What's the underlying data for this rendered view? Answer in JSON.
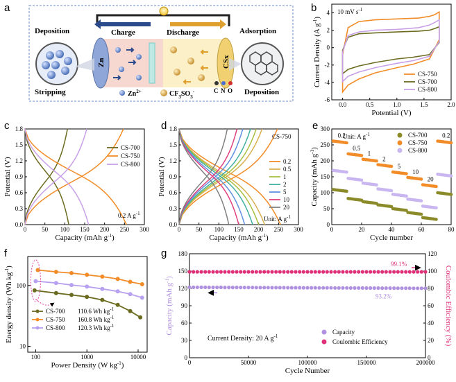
{
  "figure": {
    "letters": [
      "a",
      "b",
      "c",
      "d",
      "e",
      "f",
      "g"
    ],
    "schematic": {
      "charge_label": "Charge",
      "discharge_label": "Discharge",
      "deposition_left": "Deposition",
      "stripping_left": "Stripping",
      "adsorption_right": "Adsorption",
      "deposition_right": "Deposition",
      "zn_electrode": "Zn",
      "cs_electrode": "CSx",
      "zn_ion_legend": "Zn",
      "zn_ion_charge": "2+",
      "triflate_legend": "CF",
      "triflate_sub": "3",
      "triflate_mid": "SO",
      "triflate_sub2": "3",
      "triflate_charge": "-",
      "atoms": [
        "C",
        "N",
        "O"
      ],
      "colors": {
        "zn_ion": "#5a7fc4",
        "triflate": "#d9a84a",
        "charge_arrow": "#2b4a8c",
        "discharge_arrow": "#e0a030"
      }
    }
  },
  "chart_data": [
    {
      "id": "b",
      "type": "line",
      "title": "10 mV s-1",
      "xlabel": "Potential (V)",
      "ylabel": "Current Density (A g-1)",
      "xlim": [
        -0.2,
        2.0
      ],
      "ylim": [
        -6,
        5
      ],
      "xticks": [
        "0.0",
        "0.5",
        "1.0",
        "1.5",
        "2.0"
      ],
      "yticks": [
        "-6",
        "-4",
        "-2",
        "0",
        "2",
        "4"
      ],
      "legend_position": "bottom-right",
      "series": [
        {
          "name": "CS-750",
          "color": "#f28c28",
          "upper": [
            [
              0.0,
              -0.8
            ],
            [
              0.1,
              2.3
            ],
            [
              0.3,
              3.0
            ],
            [
              0.6,
              3.2
            ],
            [
              1.0,
              3.3
            ],
            [
              1.4,
              3.4
            ],
            [
              1.6,
              3.6
            ],
            [
              1.7,
              3.8
            ],
            [
              1.78,
              4.1
            ]
          ],
          "lower": [
            [
              1.78,
              0.9
            ],
            [
              1.6,
              -1.3
            ],
            [
              1.3,
              -1.9
            ],
            [
              1.0,
              -2.3
            ],
            [
              0.6,
              -2.9
            ],
            [
              0.3,
              -3.6
            ],
            [
              0.1,
              -4.3
            ],
            [
              0.0,
              -5.1
            ]
          ]
        },
        {
          "name": "CS-700",
          "color": "#6b6b20",
          "upper": [
            [
              0.0,
              -0.3
            ],
            [
              0.1,
              1.2
            ],
            [
              0.3,
              1.6
            ],
            [
              0.6,
              1.7
            ],
            [
              1.0,
              1.8
            ],
            [
              1.4,
              1.9
            ],
            [
              1.6,
              2.0
            ],
            [
              1.7,
              2.2
            ],
            [
              1.78,
              2.4
            ]
          ],
          "lower": [
            [
              1.78,
              0.6
            ],
            [
              1.6,
              -0.8
            ],
            [
              1.3,
              -1.1
            ],
            [
              1.0,
              -1.3
            ],
            [
              0.6,
              -1.7
            ],
            [
              0.3,
              -2.1
            ],
            [
              0.1,
              -2.5
            ],
            [
              0.0,
              -3.0
            ]
          ]
        },
        {
          "name": "CS-800",
          "color": "#c9a0e8",
          "upper": [
            [
              0.0,
              -0.5
            ],
            [
              0.1,
              1.4
            ],
            [
              0.3,
              1.8
            ],
            [
              0.6,
              2.0
            ],
            [
              1.0,
              2.1
            ],
            [
              1.4,
              2.3
            ],
            [
              1.6,
              2.6
            ],
            [
              1.7,
              2.9
            ],
            [
              1.78,
              3.2
            ]
          ],
          "lower": [
            [
              1.78,
              0.7
            ],
            [
              1.6,
              -1.0
            ],
            [
              1.3,
              -1.5
            ],
            [
              1.0,
              -1.8
            ],
            [
              0.6,
              -2.3
            ],
            [
              0.3,
              -2.8
            ],
            [
              0.1,
              -3.3
            ],
            [
              0.0,
              -3.9
            ]
          ]
        }
      ]
    },
    {
      "id": "c",
      "type": "line",
      "xlabel": "Capacity (mAh g-1)",
      "ylabel": "Potential (V)",
      "xlim": [
        0,
        300
      ],
      "ylim": [
        0,
        1.8
      ],
      "xticks": [
        "0",
        "50",
        "100",
        "150",
        "200",
        "250",
        "300"
      ],
      "yticks": [
        "0.0",
        "0.3",
        "0.6",
        "0.9",
        "1.2",
        "1.5",
        "1.8"
      ],
      "annotation": "0.2 A g-1",
      "legend_position": "top-right",
      "series": [
        {
          "name": "CS-700",
          "color": "#6b6b20",
          "capacity": 110
        },
        {
          "name": "CS-750",
          "color": "#f28c28",
          "capacity": 255
        },
        {
          "name": "CS-800",
          "color": "#c9a0e8",
          "capacity": 160
        }
      ]
    },
    {
      "id": "d",
      "type": "line",
      "title": "CS-750",
      "xlabel": "Capacity (mAh g-1)",
      "ylabel": "Potential (V)",
      "xlim": [
        0,
        300
      ],
      "ylim": [
        0,
        1.8
      ],
      "xticks": [
        "0",
        "50",
        "100",
        "150",
        "200",
        "250",
        "300"
      ],
      "yticks": [
        "0.0",
        "0.3",
        "0.6",
        "0.9",
        "1.2",
        "1.5",
        "1.8"
      ],
      "annotation": "Unit: A g-1",
      "legend_position": "right",
      "series": [
        {
          "name": "0.2",
          "color": "#f28c28",
          "capacity": 255
        },
        {
          "name": "0.5",
          "color": "#d8b050",
          "capacity": 215
        },
        {
          "name": "1",
          "color": "#a8c040",
          "capacity": 200
        },
        {
          "name": "2",
          "color": "#40b0a0",
          "capacity": 185
        },
        {
          "name": "5",
          "color": "#6090e0",
          "capacity": 165
        },
        {
          "name": "10",
          "color": "#e04080",
          "capacity": 150
        },
        {
          "name": "20",
          "color": "#808080",
          "capacity": 125
        }
      ]
    },
    {
      "id": "e",
      "type": "scatter",
      "xlabel": "Cycle number",
      "ylabel": "Capacity (mAh g-1)",
      "xlim": [
        0,
        80
      ],
      "ylim": [
        0,
        300
      ],
      "xticks": [
        "0",
        "20",
        "40",
        "60",
        "80"
      ],
      "yticks": [
        "0",
        "50",
        "100",
        "150",
        "200",
        "250",
        "300"
      ],
      "annotation": "Unit: A g-1",
      "rate_labels": [
        "0.2",
        "0.5",
        "1",
        "2",
        "5",
        "10",
        "20",
        "0.2"
      ],
      "series": [
        {
          "name": "CS-700",
          "color": "#8a8a28",
          "plateaus": [
            110,
            82,
            72,
            62,
            50,
            38,
            22,
            100
          ]
        },
        {
          "name": "CS-750",
          "color": "#f28c28",
          "plateaus": [
            262,
            222,
            205,
            188,
            165,
            148,
            125,
            262
          ]
        },
        {
          "name": "CS-800",
          "color": "#c9b6f0",
          "plateaus": [
            170,
            145,
            130,
            112,
            95,
            80,
            58,
            158
          ]
        }
      ]
    },
    {
      "id": "f",
      "type": "line",
      "xlabel": "Power Density (W kg-1)",
      "ylabel": "Energy density (Wh kg-1)",
      "xscale": "log",
      "yscale": "log",
      "xticks": [
        "100",
        "1000",
        "10000"
      ],
      "yticks": [
        "10",
        "100"
      ],
      "series": [
        {
          "name": "CS-700",
          "note": "110.6 Wh kg-1",
          "color": "#6b6b20",
          "points": [
            [
              95,
              83
            ],
            [
              250,
              75
            ],
            [
              500,
              70
            ],
            [
              1000,
              65
            ],
            [
              2000,
              58
            ],
            [
              4000,
              48
            ],
            [
              7000,
              38
            ],
            [
              11000,
              30
            ]
          ]
        },
        {
          "name": "CS-750",
          "note": "160.8 Wh kg-1",
          "color": "#f28c28",
          "points": [
            [
              110,
              180
            ],
            [
              250,
              168
            ],
            [
              500,
              160
            ],
            [
              1000,
              150
            ],
            [
              2000,
              140
            ],
            [
              4000,
              128
            ],
            [
              7000,
              115
            ],
            [
              12000,
              105
            ]
          ]
        },
        {
          "name": "CS-800",
          "note": "120.3 Wh kg-1",
          "color": "#b8a0f0",
          "points": [
            [
              100,
              118
            ],
            [
              250,
              110
            ],
            [
              500,
              102
            ],
            [
              1000,
              96
            ],
            [
              2000,
              88
            ],
            [
              4000,
              80
            ],
            [
              7000,
              72
            ],
            [
              12000,
              63
            ]
          ]
        }
      ]
    },
    {
      "id": "g",
      "type": "scatter",
      "xlabel": "Cycle Number",
      "ylabel": "Capacity (mAh g-1)",
      "ylabel_right": "Coulombic Efficiency (%)",
      "xlim": [
        0,
        200000
      ],
      "ylim": [
        0,
        180
      ],
      "ylim_right": [
        0,
        120
      ],
      "xticks": [
        "0",
        "50000",
        "100000",
        "150000",
        "200000"
      ],
      "yticks": [
        "0",
        "30",
        "60",
        "90",
        "120",
        "150",
        "180"
      ],
      "yticks_right": [
        "0",
        "20",
        "40",
        "60",
        "80",
        "100",
        "120"
      ],
      "annotation": "Current Density: 20 A g-1",
      "series": [
        {
          "name": "Capacity",
          "color": "#b090e0",
          "value": 122,
          "retention": "93.2%"
        },
        {
          "name": "Coulombic Efficiency",
          "color": "#e0307a",
          "value": 99.1,
          "label": "99.1%"
        }
      ]
    }
  ]
}
